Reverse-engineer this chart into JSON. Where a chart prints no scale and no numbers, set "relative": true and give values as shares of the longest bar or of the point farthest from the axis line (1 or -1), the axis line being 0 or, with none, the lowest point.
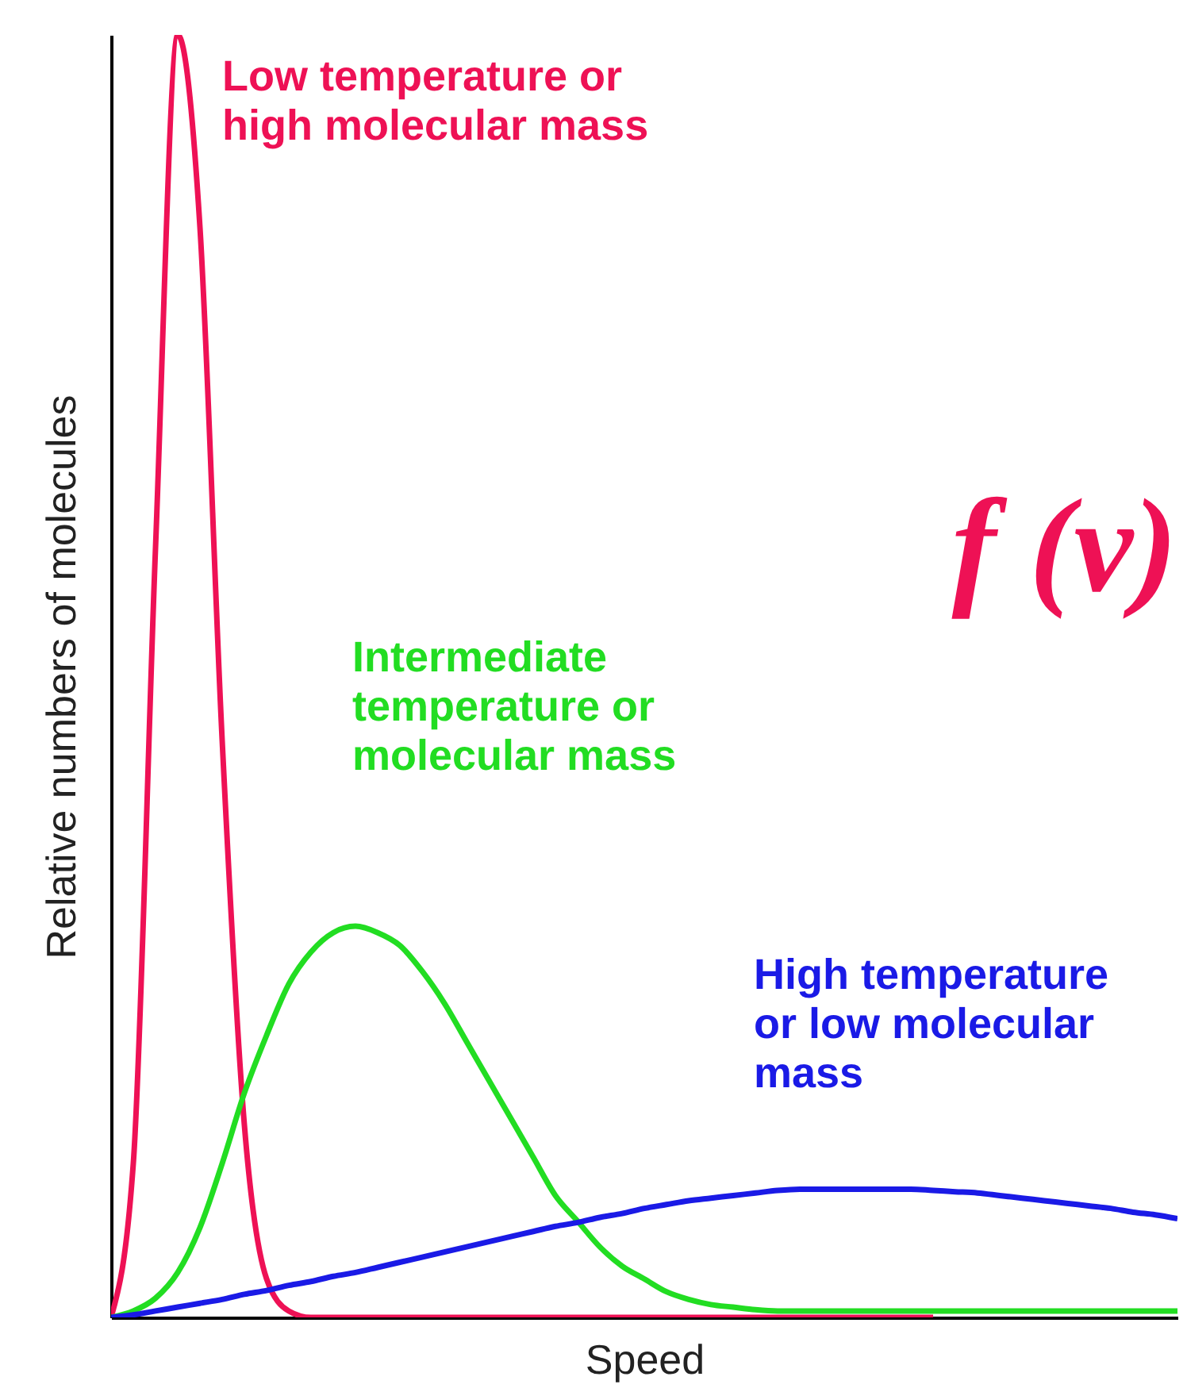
{
  "chart_data": {
    "type": "line",
    "relative": true,
    "xlabel": "Speed",
    "ylabel": "Relative numbers of molecules",
    "categories": [
      null,
      null,
      null,
      null,
      null,
      null,
      null,
      null,
      null,
      null,
      null,
      null,
      null,
      null,
      null,
      null,
      null,
      null,
      null,
      null,
      null,
      null,
      null,
      null,
      null,
      null,
      null,
      null,
      null,
      null,
      null,
      null,
      null,
      null,
      null,
      null,
      null,
      null,
      null,
      null,
      null,
      null,
      null,
      null,
      null,
      null,
      null,
      null,
      null
    ],
    "series": [
      {
        "name": "Low temperature or high molecular mass",
        "color": "#ee1155",
        "values": [
          0,
          0.12,
          0.6,
          1.0,
          0.85,
          0.45,
          0.15,
          0.03,
          0.005,
          0,
          0,
          0,
          0,
          0,
          0,
          0,
          0,
          0,
          0,
          0,
          0,
          0,
          0,
          0,
          0,
          0,
          0,
          0,
          0,
          0,
          0,
          0,
          0,
          0,
          0,
          0,
          0,
          0,
          null,
          null,
          null,
          null,
          null,
          null,
          null,
          null,
          null,
          null,
          null
        ]
      },
      {
        "name": "Intermediate temperature or molecular mass",
        "color": "#22dd22",
        "values": [
          0,
          0.005,
          0.015,
          0.035,
          0.07,
          0.12,
          0.175,
          0.22,
          0.26,
          0.285,
          0.3,
          0.305,
          0.3,
          0.29,
          0.27,
          0.245,
          0.215,
          0.185,
          0.155,
          0.125,
          0.095,
          0.075,
          0.055,
          0.04,
          0.03,
          0.02,
          0.014,
          0.01,
          0.008,
          0.006,
          0.005,
          0.005,
          0.005,
          0.005,
          0.005,
          0.005,
          0.005,
          0.005,
          0.005,
          0.005,
          0.005,
          0.005,
          0.005,
          0.005,
          0.005,
          0.005,
          0.005,
          0.005,
          0.005
        ]
      },
      {
        "name": "High temperature or low molecular mass",
        "color": "#1a1ae6",
        "values": [
          0,
          0.002,
          0.005,
          0.008,
          0.011,
          0.014,
          0.018,
          0.021,
          0.025,
          0.028,
          0.032,
          0.035,
          0.039,
          0.043,
          0.047,
          0.051,
          0.055,
          0.059,
          0.063,
          0.067,
          0.071,
          0.074,
          0.078,
          0.081,
          0.085,
          0.088,
          0.091,
          0.093,
          0.095,
          0.097,
          0.099,
          0.1,
          0.1,
          0.1,
          0.1,
          0.1,
          0.1,
          0.099,
          0.098,
          0.097,
          0.095,
          0.093,
          0.091,
          0.089,
          0.087,
          0.085,
          0.082,
          0.08,
          0.077
        ]
      }
    ],
    "annotations": [
      "f (v)"
    ]
  }
}
